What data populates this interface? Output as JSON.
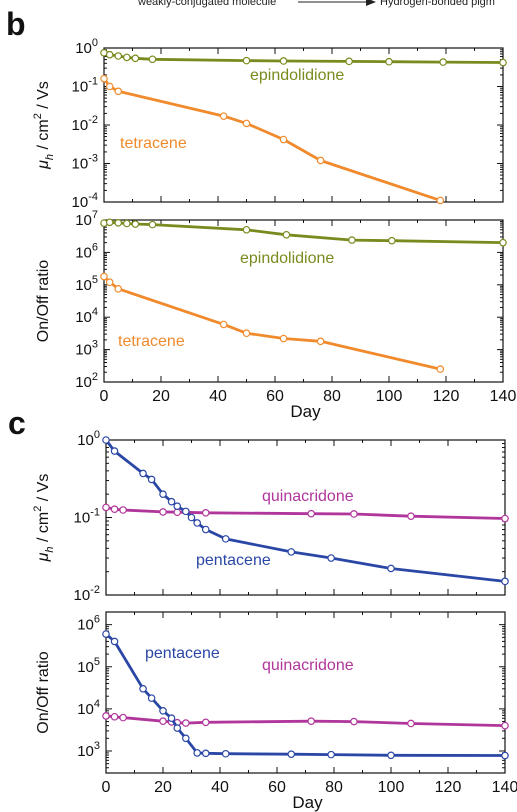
{
  "header": {
    "left_text": "weakly-conjugated molecule",
    "right_text": "Hydrogen-bonded pigm"
  },
  "panel_letters": {
    "b": "b",
    "c": "c"
  },
  "colors": {
    "tetracene": "#f08a2c",
    "epindolidione": "#7a8a1e",
    "pentacene": "#2b47a6",
    "quinacridone": "#b0369c",
    "axis": "#111111"
  },
  "chart_data": [
    {
      "type": "line",
      "panel": "b",
      "ylabel": "μh / cm2 / Vs",
      "xlabel": "",
      "xlim": [
        0,
        140
      ],
      "ylim": [
        0.0001,
        1
      ],
      "yscale": "log",
      "yticks": [
        "10-4",
        "10-3",
        "10-2",
        "10-1",
        "100"
      ],
      "xticks": [],
      "series": [
        {
          "name": "epindolidione",
          "color": "#7a8a1e",
          "x": [
            0,
            2,
            5,
            8,
            11,
            17,
            50,
            63,
            86,
            100,
            119,
            140
          ],
          "y": [
            0.75,
            0.67,
            0.62,
            0.57,
            0.54,
            0.51,
            0.47,
            0.46,
            0.45,
            0.44,
            0.43,
            0.42
          ]
        },
        {
          "name": "tetracene",
          "color": "#f08a2c",
          "x": [
            0,
            2,
            5,
            42,
            50,
            63,
            76,
            118
          ],
          "y": [
            0.16,
            0.1,
            0.075,
            0.017,
            0.011,
            0.0042,
            0.0012,
            0.00011
          ]
        }
      ]
    },
    {
      "type": "line",
      "panel": "b",
      "ylabel": "On/Off ratio",
      "xlabel": "Day",
      "xlim": [
        0,
        140
      ],
      "ylim": [
        100,
        10000000
      ],
      "yscale": "log",
      "yticks": [
        "102",
        "103",
        "104",
        "105",
        "106",
        "107"
      ],
      "xticks": [
        "0",
        "20",
        "40",
        "60",
        "80",
        "100",
        "120",
        "140"
      ],
      "series": [
        {
          "name": "epindolidione",
          "color": "#7a8a1e",
          "x": [
            0,
            2,
            5,
            8,
            11,
            17,
            50,
            64,
            87,
            101,
            140
          ],
          "y": [
            8000000,
            8500000,
            8200000,
            7800000,
            7500000,
            7200000,
            5000000,
            3500000,
            2400000,
            2300000,
            2000000
          ]
        },
        {
          "name": "tetracene",
          "color": "#f08a2c",
          "x": [
            0,
            2,
            5,
            42,
            50,
            63,
            76,
            118
          ],
          "y": [
            180000,
            120000,
            75000,
            6000,
            3200,
            2200,
            1800,
            250
          ]
        }
      ]
    },
    {
      "type": "line",
      "panel": "c",
      "ylabel": "μh / cm2 / Vs",
      "xlabel": "",
      "xlim": [
        0,
        140
      ],
      "ylim": [
        0.01,
        1
      ],
      "yscale": "log",
      "yticks": [
        "10-2",
        "10-1",
        "100"
      ],
      "xticks": [],
      "series": [
        {
          "name": "quinacridone",
          "color": "#b0369c",
          "x": [
            0,
            3,
            6,
            20,
            25,
            35,
            72,
            87,
            107,
            140
          ],
          "y": [
            0.135,
            0.128,
            0.125,
            0.118,
            0.117,
            0.115,
            0.112,
            0.111,
            0.104,
            0.097
          ]
        },
        {
          "name": "pentacene",
          "color": "#2b47a6",
          "x": [
            0,
            3,
            13,
            16,
            20,
            23,
            25,
            28,
            30,
            32,
            35,
            42,
            65,
            79,
            100,
            140
          ],
          "y": [
            1.0,
            0.72,
            0.37,
            0.31,
            0.2,
            0.16,
            0.14,
            0.12,
            0.1,
            0.085,
            0.07,
            0.053,
            0.036,
            0.03,
            0.022,
            0.015
          ]
        }
      ]
    },
    {
      "type": "line",
      "panel": "c",
      "ylabel": "On/Off ratio",
      "xlabel": "Day",
      "xlim": [
        0,
        140
      ],
      "ylim": [
        300,
        2000000
      ],
      "yscale": "log",
      "yticks": [
        "103",
        "104",
        "105",
        "106"
      ],
      "xticks": [
        "0",
        "20",
        "40",
        "60",
        "80",
        "100",
        "120",
        "140"
      ],
      "series": [
        {
          "name": "quinacridone",
          "color": "#b0369c",
          "x": [
            0,
            3,
            6,
            20,
            23,
            25,
            28,
            35,
            72,
            87,
            107,
            140
          ],
          "y": [
            6800,
            6500,
            6200,
            5100,
            4900,
            4700,
            4600,
            4800,
            5100,
            5000,
            4500,
            4000
          ]
        },
        {
          "name": "pentacene",
          "color": "#2b47a6",
          "x": [
            0,
            3,
            13,
            16,
            20,
            23,
            25,
            28,
            32,
            35,
            42,
            65,
            79,
            100,
            140
          ],
          "y": [
            600000,
            400000,
            30000,
            18000,
            9000,
            6000,
            3500,
            2000,
            900,
            880,
            860,
            840,
            820,
            790,
            780
          ]
        }
      ]
    }
  ]
}
